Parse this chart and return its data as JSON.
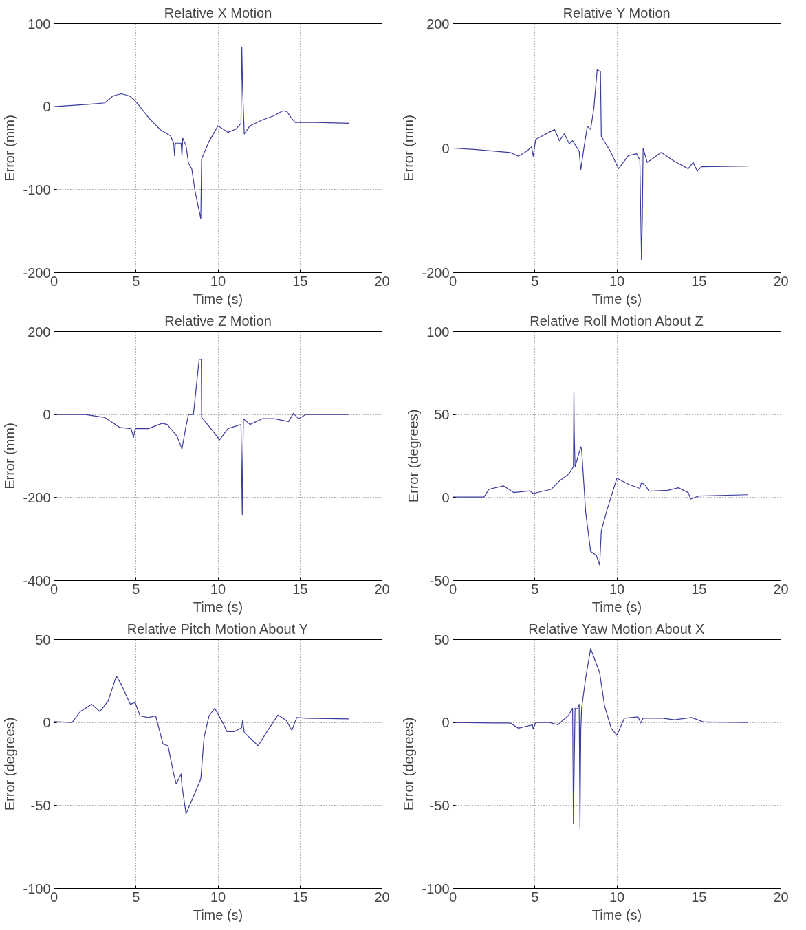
{
  "chart_data": [
    {
      "type": "line",
      "title": "Relative X Motion",
      "xlabel": "Time (s)",
      "ylabel": "Error (mm)",
      "xlim": [
        0,
        20
      ],
      "ylim": [
        -200,
        100
      ],
      "xticks": [
        0,
        5,
        10,
        15,
        20
      ],
      "yticks": [
        -200,
        -100,
        0,
        100
      ],
      "grid": true,
      "line_style": "solid",
      "x": [
        0,
        2.2,
        3.1,
        3.6,
        4.1,
        4.6,
        4.9,
        5.2,
        5.8,
        6.5,
        7.1,
        7.3,
        7.35,
        7.4,
        7.75,
        7.8,
        7.85,
        8.05,
        8.2,
        8.4,
        8.6,
        8.95,
        9.0,
        9.45,
        10.0,
        10.6,
        11.1,
        11.4,
        11.45,
        11.5,
        11.6,
        11.95,
        12.7,
        13.4,
        13.95,
        14.2,
        14.45,
        14.7,
        15.95,
        18.0
      ],
      "series": [
        {
          "color": "#3b3b9e",
          "values": [
            0,
            3,
            4.5,
            13,
            15.5,
            13,
            8,
            1,
            -14,
            -28,
            -35,
            -44,
            -59,
            -44,
            -44,
            -59,
            -38,
            -47,
            -68,
            -75,
            -102,
            -135,
            -63,
            -42,
            -23,
            -31,
            -27,
            -20,
            72,
            22,
            -33,
            -23,
            -16,
            -11,
            -5,
            -6,
            -13,
            -19,
            -19,
            -20
          ]
        }
      ]
    },
    {
      "type": "line",
      "title": "Relative Y Motion",
      "xlabel": "Time (s)",
      "ylabel": "Error (mm)",
      "xlim": [
        0,
        20
      ],
      "ylim": [
        -200,
        200
      ],
      "xticks": [
        0,
        5,
        10,
        15,
        20
      ],
      "yticks": [
        -200,
        0,
        200
      ],
      "grid": true,
      "line_style": "solid",
      "x": [
        0,
        1.3,
        3.5,
        4.0,
        4.5,
        4.8,
        4.9,
        5.05,
        6.2,
        6.5,
        6.8,
        7.1,
        7.3,
        7.7,
        7.8,
        8.0,
        8.2,
        8.4,
        8.6,
        8.8,
        9.0,
        9.05,
        9.6,
        10.1,
        10.7,
        11.2,
        11.4,
        11.5,
        11.55,
        11.6,
        11.85,
        12.7,
        13.5,
        14.35,
        14.65,
        14.9,
        15.15,
        18.0
      ],
      "series": [
        {
          "color": "#3b3b9e",
          "values": [
            0,
            -2,
            -7,
            -13,
            -5,
            2,
            -13,
            14,
            30,
            12,
            23,
            7,
            12,
            -5,
            -35,
            2,
            35,
            30,
            65,
            126,
            123,
            19,
            -5,
            -33,
            -12,
            -9,
            -19,
            -179,
            -116,
            0,
            -23,
            -7,
            -21,
            -33,
            -23,
            -37,
            -30,
            -29
          ]
        }
      ]
    },
    {
      "type": "line",
      "title": "Relative Z Motion",
      "xlabel": "Time (s)",
      "ylabel": "Error (mm)",
      "xlim": [
        0,
        20
      ],
      "ylim": [
        -400,
        200
      ],
      "xticks": [
        0,
        5,
        10,
        15,
        20
      ],
      "yticks": [
        -400,
        -200,
        0,
        200
      ],
      "grid": true,
      "line_style": "solid",
      "x": [
        0,
        1.9,
        3.1,
        4.0,
        4.7,
        4.85,
        4.95,
        5.75,
        6.6,
        6.9,
        7.5,
        7.8,
        8.05,
        8.2,
        8.5,
        8.85,
        8.98,
        9.0,
        9.45,
        10.1,
        10.6,
        11.4,
        11.48,
        11.5,
        11.55,
        11.95,
        12.7,
        13.4,
        14.3,
        14.6,
        14.9,
        15.35,
        18.0
      ],
      "series": [
        {
          "color": "#3b3b9e",
          "values": [
            0,
            0,
            -7,
            -31,
            -34,
            -55,
            -34,
            -34,
            -21,
            -24,
            -52,
            -83,
            -28,
            0,
            0,
            133,
            133,
            -7,
            -28,
            -61,
            -34,
            -24,
            -241,
            -128,
            -10,
            -24,
            -10,
            -10,
            -17,
            3,
            -10,
            0,
            0
          ]
        }
      ]
    },
    {
      "type": "line",
      "title": "Relative Roll Motion About Z",
      "xlabel": "Time (s)",
      "ylabel": "Error (degrees)",
      "xlim": [
        0,
        20
      ],
      "ylim": [
        -50,
        100
      ],
      "xticks": [
        0,
        5,
        10,
        15,
        20
      ],
      "yticks": [
        -50,
        0,
        50,
        100
      ],
      "grid": true,
      "line_style": "solid",
      "x": [
        0,
        1.9,
        2.2,
        3.1,
        3.7,
        4.7,
        4.9,
        6.0,
        6.5,
        7.05,
        7.35,
        7.38,
        7.4,
        7.45,
        7.8,
        7.85,
        8.1,
        8.4,
        8.75,
        8.95,
        9.05,
        9.4,
        10.0,
        10.7,
        11.4,
        11.5,
        11.75,
        11.95,
        13.1,
        13.75,
        14.35,
        14.5,
        15.0,
        18.0
      ],
      "series": [
        {
          "color": "#3b3b9e",
          "values": [
            0.3,
            0.3,
            5,
            7,
            3,
            4,
            2.4,
            5,
            10,
            14,
            18.5,
            63.5,
            40,
            18.5,
            30.6,
            29,
            -9,
            -32.5,
            -35,
            -40.7,
            -20,
            -7.4,
            11.6,
            8,
            5.5,
            9,
            7.3,
            3.8,
            4.3,
            5.9,
            3,
            -0.9,
            0.9,
            1.7
          ]
        }
      ]
    },
    {
      "type": "line",
      "title": "Relative Pitch Motion About Y",
      "xlabel": "Time (s)",
      "ylabel": "Error (degrees)",
      "xlim": [
        0,
        20
      ],
      "ylim": [
        -100,
        50
      ],
      "xticks": [
        0,
        5,
        10,
        15,
        20
      ],
      "yticks": [
        -100,
        -50,
        0,
        50
      ],
      "grid": true,
      "line_style": "solid",
      "x": [
        0,
        1.1,
        1.6,
        2.3,
        2.8,
        3.3,
        3.8,
        4.1,
        4.65,
        4.95,
        5.25,
        5.75,
        6.2,
        6.65,
        6.95,
        7.3,
        7.45,
        7.75,
        7.8,
        8.05,
        8.4,
        8.95,
        9.15,
        9.45,
        9.8,
        10.3,
        10.55,
        11.0,
        11.45,
        11.5,
        11.6,
        12.45,
        12.95,
        13.65,
        14.15,
        14.5,
        14.8,
        15.35,
        18.0
      ],
      "series": [
        {
          "color": "#3b3b9e",
          "values": [
            0.5,
            0,
            6.6,
            11,
            6.6,
            13,
            28,
            23,
            11,
            12,
            4,
            3,
            4,
            -13,
            -14,
            -31,
            -37,
            -31,
            -38,
            -55,
            -47,
            -34,
            -9,
            4,
            8.6,
            -0.3,
            -5.5,
            -5.5,
            -3,
            1.4,
            -6,
            -14,
            -6,
            4.5,
            1.4,
            -4.7,
            3,
            2.6,
            2.2
          ]
        }
      ]
    },
    {
      "type": "line",
      "title": "Relative Yaw Motion About X",
      "xlabel": "Time (s)",
      "ylabel": "Error (degrees)",
      "xlim": [
        0,
        20
      ],
      "ylim": [
        -100,
        50
      ],
      "xticks": [
        0,
        5,
        10,
        15,
        20
      ],
      "yticks": [
        -100,
        -50,
        0,
        50
      ],
      "grid": true,
      "line_style": "solid",
      "x": [
        0,
        2.5,
        3.5,
        4.0,
        4.85,
        4.9,
        5.05,
        5.9,
        6.4,
        7.05,
        7.3,
        7.35,
        7.4,
        7.45,
        7.6,
        7.7,
        7.75,
        7.8,
        7.85,
        8.1,
        8.4,
        8.95,
        9.25,
        9.65,
        10.0,
        10.45,
        11.3,
        11.45,
        11.6,
        12.8,
        13.5,
        14.55,
        15.3,
        18.0
      ],
      "series": [
        {
          "color": "#3b3b9e",
          "values": [
            0,
            -0.3,
            -0.3,
            -3.4,
            -1.4,
            -4,
            0,
            0,
            -1.4,
            4.3,
            8.6,
            -61,
            -26,
            8.6,
            8.2,
            11,
            -64,
            -5,
            8.6,
            27,
            44.6,
            30,
            10,
            -3.4,
            -7.7,
            2.6,
            3.4,
            -0.3,
            2.6,
            2.6,
            1.7,
            3,
            0.3,
            0
          ]
        }
      ]
    }
  ]
}
